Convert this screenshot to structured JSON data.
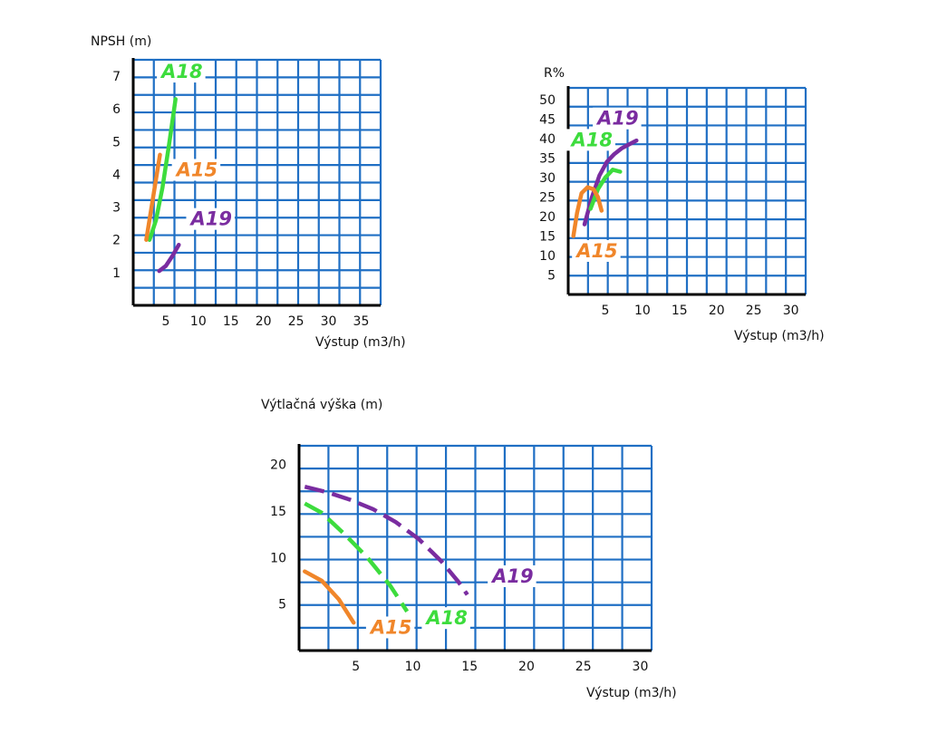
{
  "colors": {
    "grid": "#1f6fc4",
    "axis": "#000000",
    "A15": "#f0862a",
    "A18": "#3ddc3d",
    "A19": "#7a2ca0"
  },
  "chart_data": [
    {
      "type": "line",
      "ylabel": "NPSH (m)",
      "xlabel": "Výstup (m3/h)",
      "xlim": [
        0,
        38
      ],
      "ylim": [
        0,
        7.5
      ],
      "xticks": [
        5,
        10,
        15,
        20,
        25,
        30,
        35
      ],
      "yticks": [
        1,
        2,
        3,
        4,
        5,
        6,
        7
      ],
      "grid": true,
      "series": [
        {
          "name": "A18",
          "color": "A18",
          "dashed": false,
          "label_at": [
            7.5,
            7
          ],
          "x": [
            2.5,
            3.5,
            4.5,
            5.5,
            6.5
          ],
          "y": [
            2.0,
            2.6,
            3.6,
            4.9,
            6.3
          ]
        },
        {
          "name": "A15",
          "color": "A15",
          "dashed": false,
          "label_at": [
            9.8,
            4.0
          ],
          "x": [
            2.0,
            4.1
          ],
          "y": [
            2.0,
            4.6
          ]
        },
        {
          "name": "A19",
          "color": "A19",
          "dashed": false,
          "label_at": [
            12.0,
            2.5
          ],
          "x": [
            4.0,
            5.0,
            6.0,
            7.0
          ],
          "y": [
            1.05,
            1.2,
            1.5,
            1.85
          ]
        }
      ]
    },
    {
      "type": "line",
      "ylabel": "R%",
      "xlabel": "Výstup (m3/h)",
      "xlim": [
        0,
        32
      ],
      "ylim": [
        0,
        53
      ],
      "xticks": [
        5,
        10,
        15,
        20,
        25,
        30
      ],
      "yticks": [
        5,
        10,
        15,
        20,
        25,
        30,
        35,
        40,
        45,
        50
      ],
      "grid": true,
      "series": [
        {
          "name": "A19",
          "color": "A19",
          "dashed": false,
          "label_at": [
            6.7,
            44
          ],
          "x": [
            2.2,
            3.2,
            4.2,
            5.2,
            6.2,
            7.2,
            8.2,
            9.2
          ],
          "y": [
            18,
            25,
            30.5,
            34,
            36,
            37.5,
            38.5,
            39.5
          ]
        },
        {
          "name": "A18",
          "color": "A18",
          "dashed": false,
          "label_at": [
            3.2,
            38.5
          ],
          "x": [
            3.0,
            4.0,
            5.0,
            6.0,
            7.0
          ],
          "y": [
            22,
            27,
            30,
            32,
            31.5
          ]
        },
        {
          "name": "A15",
          "color": "A15",
          "dashed": false,
          "label_at": [
            3.9,
            10
          ],
          "x": [
            0.7,
            1.2,
            1.8,
            2.6,
            3.4,
            4.0,
            4.5
          ],
          "y": [
            15,
            21,
            26,
            27.5,
            27,
            25,
            21.5
          ]
        }
      ]
    },
    {
      "type": "line",
      "ylabel": "Výtlačná výška (m)",
      "xlabel": "Výstup (m3/h)",
      "xlim": [
        0,
        31
      ],
      "ylim": [
        0,
        22
      ],
      "xticks": [
        5,
        10,
        15,
        20,
        25,
        30
      ],
      "yticks": [
        5,
        10,
        15,
        20
      ],
      "grid": true,
      "series": [
        {
          "name": "A19",
          "color": "A19",
          "dashed": true,
          "label_at": [
            18.8,
            7.5
          ],
          "x": [
            0.5,
            2.5,
            4.5,
            6.5,
            8.5,
            10.5,
            12.5,
            14.0,
            14.8
          ],
          "y": [
            17.6,
            17.0,
            16.2,
            15.2,
            13.8,
            12.0,
            9.6,
            7.4,
            6.0
          ]
        },
        {
          "name": "A18",
          "color": "A18",
          "dashed": true,
          "label_at": [
            13.0,
            3.0
          ],
          "x": [
            0.5,
            2.0,
            4.0,
            6.0,
            8.0,
            9.5
          ],
          "y": [
            15.8,
            14.8,
            12.5,
            10.0,
            7.0,
            4.2
          ]
        },
        {
          "name": "A15",
          "color": "A15",
          "dashed": false,
          "label_at": [
            8.1,
            2.0
          ],
          "x": [
            0.5,
            2.0,
            3.5,
            4.8
          ],
          "y": [
            8.5,
            7.5,
            5.5,
            3.0
          ]
        }
      ]
    }
  ]
}
